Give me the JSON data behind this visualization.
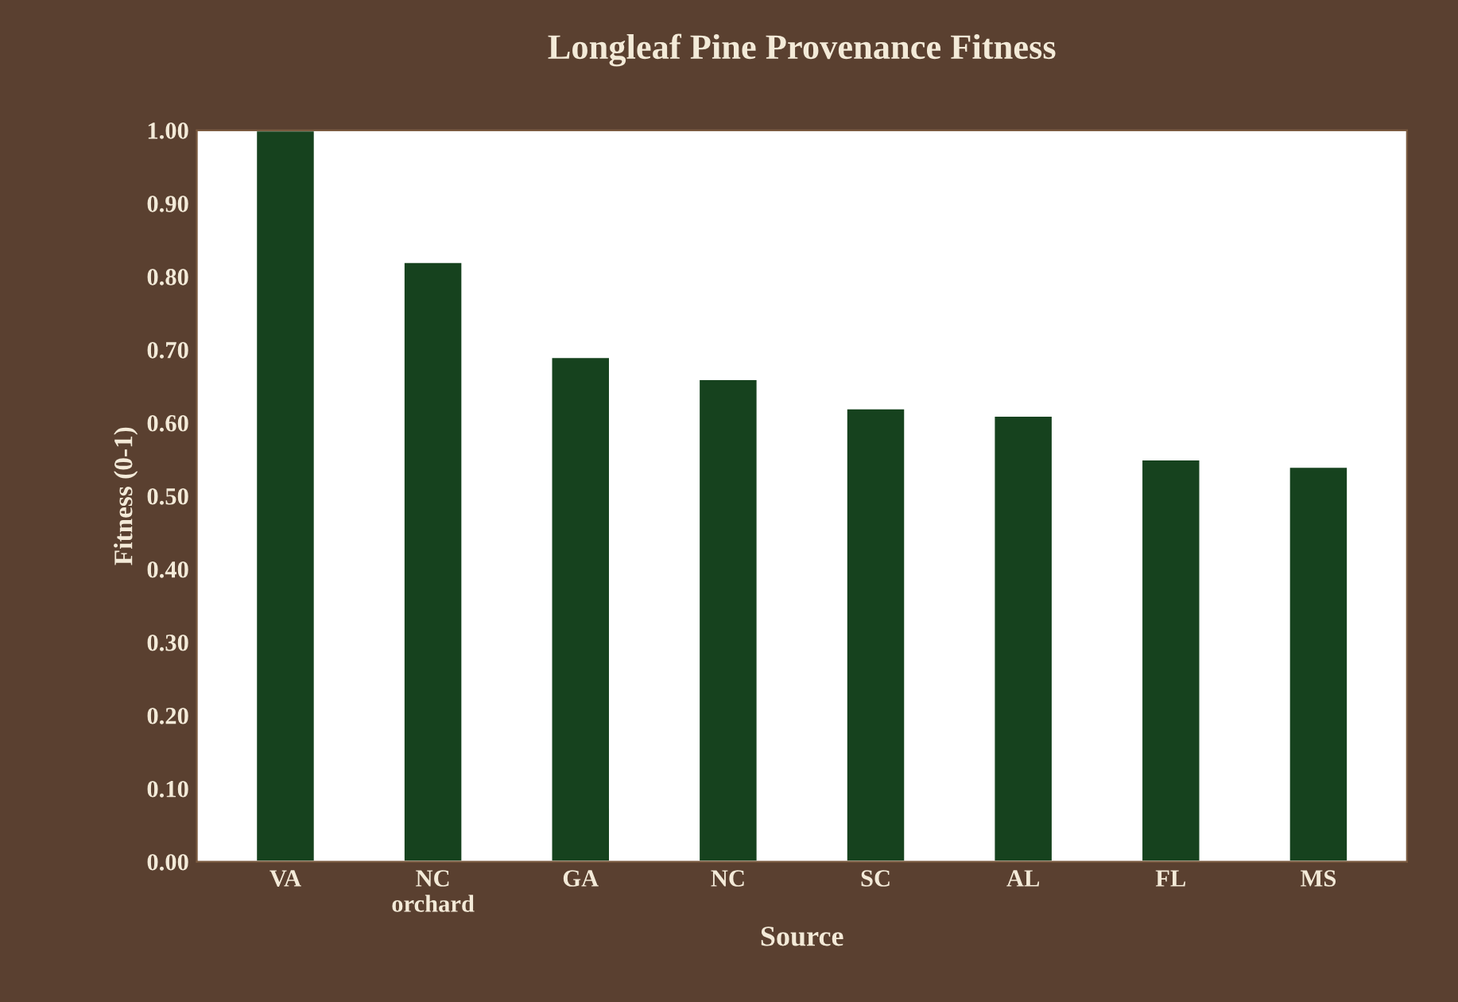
{
  "chart_data": {
    "type": "bar",
    "title": "Longleaf Pine Provenance Fitness",
    "xlabel": "Source",
    "ylabel": "Fitness (0-1)",
    "categories": [
      "VA",
      "NC\norchard",
      "GA",
      "NC",
      "SC",
      "AL",
      "FL",
      "MS"
    ],
    "values": [
      1.0,
      0.82,
      0.69,
      0.66,
      0.62,
      0.61,
      0.55,
      0.54
    ],
    "color": "#16421e",
    "ylim": [
      0,
      1
    ],
    "yticks": [
      {
        "value": 0,
        "label": "0.00"
      },
      {
        "value": 0.1,
        "label": "0.10"
      },
      {
        "value": 0.2,
        "label": "0.20"
      },
      {
        "value": 0.3,
        "label": "0.30"
      },
      {
        "value": 0.4,
        "label": "0.40"
      },
      {
        "value": 0.5,
        "label": "0.50"
      },
      {
        "value": 0.6,
        "label": "0.60"
      },
      {
        "value": 0.7,
        "label": "0.70"
      },
      {
        "value": 0.8,
        "label": "0.80"
      },
      {
        "value": 0.9,
        "label": "0.90"
      },
      {
        "value": 1,
        "label": "1.00"
      }
    ],
    "grid": false
  }
}
